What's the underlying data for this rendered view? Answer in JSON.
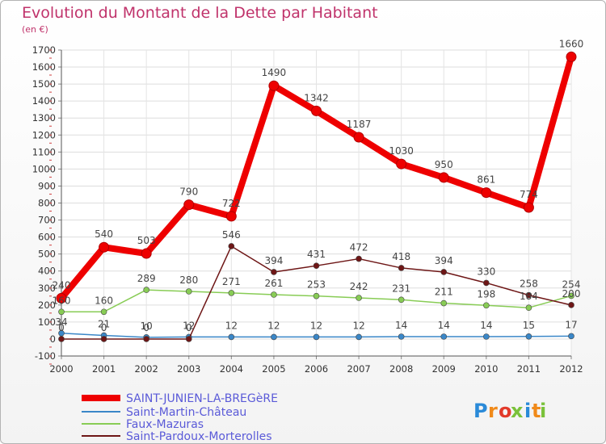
{
  "title": "Evolution du Montant de la Dette par Habitant",
  "subtitle": "(en €)",
  "logo": {
    "text": "Proxiti",
    "letters": [
      "P",
      "r",
      "o",
      "x",
      "i",
      "t",
      "i"
    ],
    "colors": [
      "#2a8ad8",
      "#f08a1a",
      "#e23a2a",
      "#7ac13a",
      "#2a8ad8",
      "#f08a1a",
      "#7ac13a"
    ]
  },
  "chart_data": {
    "type": "line",
    "x": [
      "2000",
      "2001",
      "2002",
      "2003",
      "2004",
      "2005",
      "2006",
      "2007",
      "2008",
      "2009",
      "2010",
      "2011",
      "2012"
    ],
    "ylim": [
      -100,
      1700
    ],
    "yticks": [
      -100,
      0,
      100,
      200,
      300,
      400,
      500,
      600,
      700,
      800,
      900,
      1000,
      1100,
      1200,
      1300,
      1400,
      1500,
      1600,
      1700
    ],
    "grid": true,
    "legend_position": "bottom-left",
    "series": [
      {
        "name": "SAINT-JUNIEN-LA-BREGèRE",
        "color": "#ee0000",
        "values": [
          240,
          540,
          503,
          790,
          722,
          1490,
          1342,
          1187,
          1030,
          950,
          861,
          774,
          1660
        ]
      },
      {
        "name": "Saint-Martin-Château",
        "color": "#3a87c8",
        "values": [
          34,
          21,
          10,
          12,
          12,
          12,
          12,
          12,
          14,
          14,
          14,
          15,
          17
        ]
      },
      {
        "name": "Faux-Mazuras",
        "color": "#88cc55",
        "values": [
          160,
          160,
          289,
          280,
          271,
          261,
          253,
          242,
          231,
          211,
          198,
          184,
          254
        ]
      },
      {
        "name": "Saint-Pardoux-Morterolles",
        "color": "#6e1616",
        "values": [
          0,
          0,
          0,
          0,
          546,
          394,
          431,
          472,
          418,
          394,
          330,
          258,
          200
        ]
      }
    ]
  }
}
